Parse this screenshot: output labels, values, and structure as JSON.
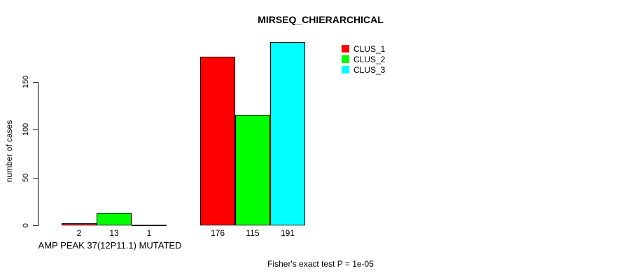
{
  "chart_data": {
    "type": "bar",
    "title": "MIRSEQ_CHIERARCHICAL",
    "xlabel": "AMP PEAK 37(12P11.1) MUTATED",
    "ylabel": "number of cases",
    "annotation": "Fisher's exact test P = 1e-05",
    "ylim": [
      0,
      150
    ],
    "yticks": [
      0,
      50,
      100,
      150
    ],
    "grid": false,
    "legend_position": "top-right",
    "groups": 2,
    "series": [
      {
        "name": "CLUS_1",
        "color": "#ff0000",
        "values": [
          2,
          176
        ]
      },
      {
        "name": "CLUS_2",
        "color": "#00ff00",
        "values": [
          13,
          115
        ]
      },
      {
        "name": "CLUS_3",
        "color": "#00ffff",
        "values": [
          1,
          191
        ]
      }
    ],
    "bar_value_labels": [
      "2",
      "13",
      "1",
      "176",
      "115",
      "191"
    ]
  }
}
